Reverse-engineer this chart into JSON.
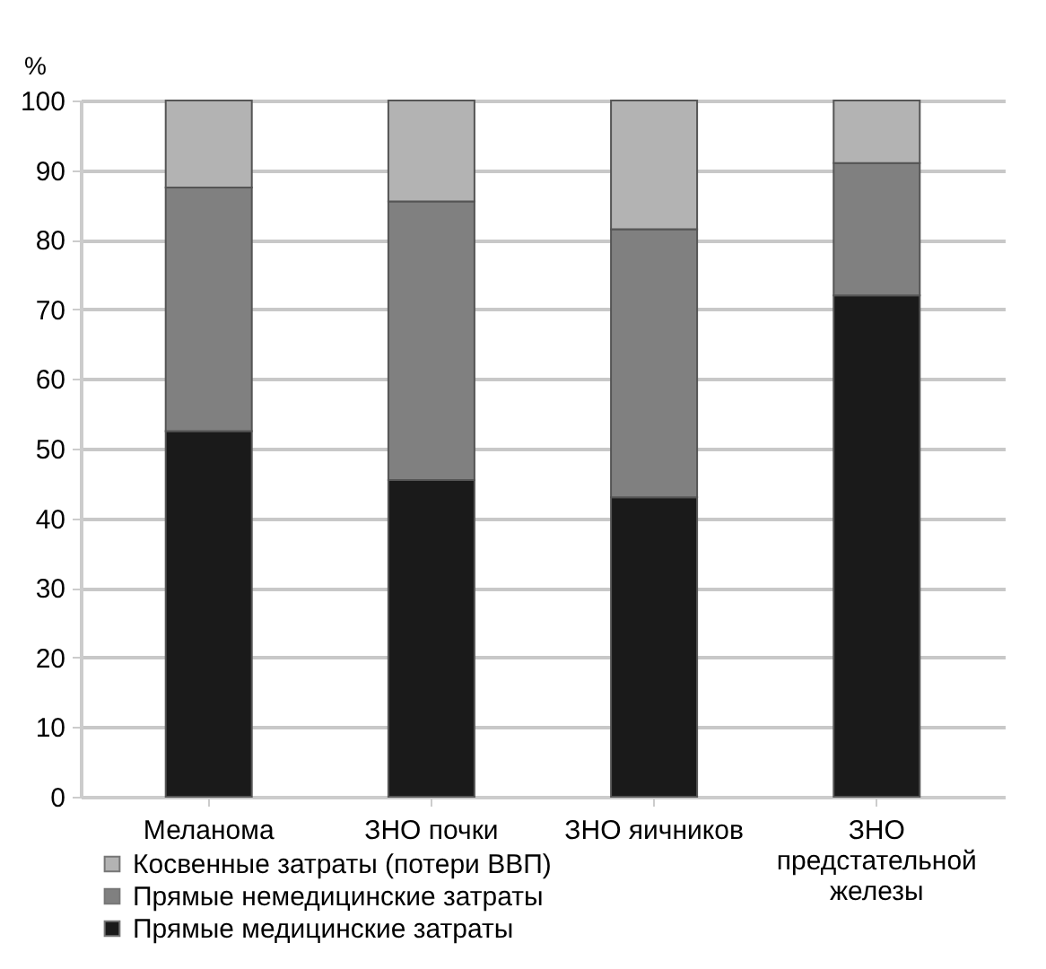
{
  "chart_data": {
    "type": "bar",
    "stacked": true,
    "ylabel": "%",
    "categories": [
      "Меланома",
      "ЗНО почки",
      "ЗНО яичников",
      "ЗНО предстательной железы"
    ],
    "series": [
      {
        "name": "Прямые медицинские затраты",
        "color": "#1a1a1a",
        "values": [
          52.5,
          45.5,
          43,
          72
        ]
      },
      {
        "name": "Прямые немедицинские затраты",
        "color": "#808080",
        "values": [
          35,
          40,
          38.5,
          19
        ]
      },
      {
        "name": "Косвенные затраты (потери ВВП)",
        "color": "#b3b3b3",
        "values": [
          12.5,
          14.5,
          18.5,
          9
        ]
      }
    ],
    "ylim": [
      0,
      100
    ],
    "yticks": [
      0,
      10,
      20,
      30,
      40,
      50,
      60,
      70,
      80,
      90,
      100
    ],
    "grid": "y",
    "legend": "bottom left"
  }
}
